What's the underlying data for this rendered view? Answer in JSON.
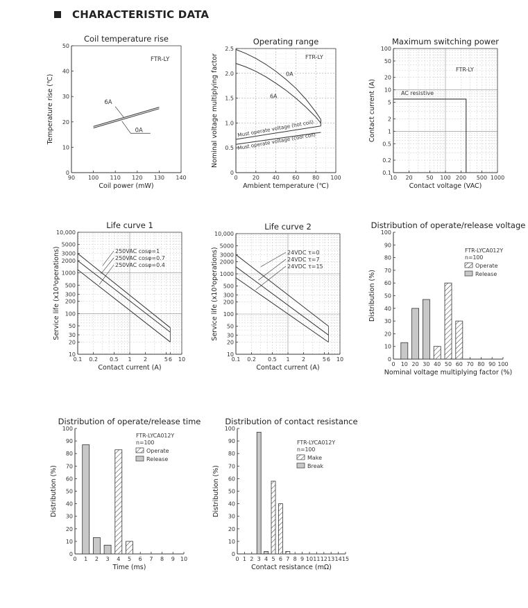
{
  "page": {
    "heading": "CHARACTERISTIC DATA"
  },
  "chart_data": [
    {
      "id": "coil",
      "type": "line",
      "title": "Coil temperature rise",
      "xlabel": "Coil power (mW)",
      "ylabel": "Temperature rise (℃)",
      "xlim": [
        90,
        140
      ],
      "ylim": [
        0,
        50
      ],
      "xticks": [
        90,
        100,
        110,
        120,
        130,
        140
      ],
      "yticks": [
        0,
        10,
        20,
        30,
        40,
        50
      ],
      "model": "FTR-LY",
      "series": [
        {
          "name": "6A",
          "x": [
            100,
            130
          ],
          "y": [
            18.2,
            25.8
          ]
        },
        {
          "name": "0A",
          "x": [
            100,
            130
          ],
          "y": [
            17.6,
            25.2
          ]
        }
      ],
      "labels": {
        "s6": "6A",
        "s0": "0A"
      }
    },
    {
      "id": "oprange",
      "type": "line",
      "title": "Operating range",
      "xlabel": "Ambient temperature (℃)",
      "ylabel": "Nominal voltage multiplying factor",
      "xlim": [
        0,
        100
      ],
      "ylim": [
        0,
        2.5
      ],
      "xticks": [
        0,
        20,
        40,
        60,
        80,
        100
      ],
      "yticks": [
        0,
        0.5,
        1.0,
        1.5,
        2.0,
        2.5
      ],
      "yticklabels": [
        "0",
        "0.5",
        "1.0",
        "1.5",
        "2.0",
        "2.5"
      ],
      "model": "FTR-LY",
      "series": [
        {
          "name": "0A",
          "x": [
            0,
            10,
            20,
            30,
            40,
            50,
            60,
            70,
            80,
            85
          ],
          "y": [
            2.48,
            2.4,
            2.3,
            2.18,
            2.04,
            1.88,
            1.7,
            1.48,
            1.22,
            1.07
          ]
        },
        {
          "name": "6A",
          "x": [
            0,
            10,
            20,
            30,
            40,
            50,
            60,
            70,
            80,
            85
          ],
          "y": [
            2.2,
            2.13,
            2.04,
            1.93,
            1.8,
            1.66,
            1.5,
            1.32,
            1.12,
            1.0
          ]
        },
        {
          "name": "Must operate voltage (hot coil)",
          "x": [
            0,
            85
          ],
          "y": [
            0.67,
            0.94
          ]
        },
        {
          "name": "Must operate voltage (cool coil)",
          "x": [
            0,
            85
          ],
          "y": [
            0.57,
            0.81
          ]
        }
      ],
      "labels": {
        "zero": "0A",
        "six": "6A",
        "hot": "Must operate voltage (hot coil)",
        "cool": "Must operate voltage (cool coil)"
      }
    },
    {
      "id": "maxpower",
      "type": "line",
      "title": "Maximum switching power",
      "xlabel": "Contact voltage (VAC)",
      "ylabel": "Contact current (A)",
      "xscale": "log",
      "yscale": "log",
      "xlim": [
        10,
        1000
      ],
      "ylim": [
        0.1,
        100
      ],
      "xticks": [
        10,
        20,
        50,
        100,
        200,
        500,
        1000
      ],
      "xticklabels": [
        "10",
        "20",
        "50",
        "100",
        "200",
        "500",
        "1000"
      ],
      "yticks": [
        0.1,
        0.2,
        0.5,
        1,
        2,
        5,
        10,
        20,
        50,
        100
      ],
      "yticklabels": [
        "0.1",
        "0.2",
        "0.5",
        "1",
        "2",
        "5",
        "10",
        "20",
        "50",
        "100"
      ],
      "model": "FTR-LY",
      "series": [
        {
          "name": "AC resistive",
          "x": [
            10,
            250,
            250
          ],
          "y": [
            6,
            6,
            0.1
          ]
        }
      ],
      "labels": {
        "ac": "AC resistive"
      }
    },
    {
      "id": "life1",
      "type": "line",
      "title": "Life curve 1",
      "xlabel": "Contact current (A)",
      "ylabel": "Service life (x10³operations)",
      "xscale": "log",
      "yscale": "log",
      "xlim": [
        0.1,
        10
      ],
      "ylim": [
        10,
        10000
      ],
      "xticks": [
        0.1,
        0.2,
        0.5,
        1,
        2,
        5,
        6,
        10
      ],
      "xticklabels": [
        "0.1",
        "0.2",
        "0.5",
        "1",
        "2",
        "5",
        "6",
        "10"
      ],
      "yticks": [
        10,
        20,
        30,
        50,
        100,
        200,
        300,
        500,
        1000,
        2000,
        3000,
        5000,
        10000
      ],
      "yticklabels": [
        "10",
        "20",
        "30",
        "50",
        "100",
        "200",
        "300",
        "500",
        "1000",
        "2000",
        "3000",
        "5000",
        "10,000"
      ],
      "series": [
        {
          "name": "250VAC cosφ=1",
          "x": [
            0.1,
            6
          ],
          "y": [
            3000,
            45
          ]
        },
        {
          "name": "250VAC cosφ=0.7",
          "x": [
            0.1,
            6
          ],
          "y": [
            2000,
            35
          ]
        },
        {
          "name": "250VAC cosφ=0.4",
          "x": [
            0.1,
            6
          ],
          "y": [
            1200,
            20
          ]
        }
      ],
      "labels": {
        "a": "250VAC cosφ=1",
        "b": "250VAC cosφ=0.7",
        "c": "250VAC cosφ=0.4"
      }
    },
    {
      "id": "life2",
      "type": "line",
      "title": "Life curve 2",
      "xlabel": "Contact current (A)",
      "ylabel": "Service life (x10³operations)",
      "xscale": "log",
      "yscale": "log",
      "xlim": [
        0.1,
        10
      ],
      "ylim": [
        10,
        10000
      ],
      "xticks": [
        0.1,
        0.2,
        0.5,
        1,
        2,
        5,
        6,
        10
      ],
      "xticklabels": [
        "0.1",
        "0.2",
        "0.5",
        "1",
        "2",
        "5",
        "6",
        "10"
      ],
      "yticks": [
        10,
        20,
        30,
        50,
        100,
        200,
        300,
        500,
        1000,
        2000,
        3000,
        5000,
        10000
      ],
      "yticklabels": [
        "10",
        "20",
        "30",
        "50",
        "100",
        "200",
        "300",
        "500",
        "1000",
        "2000",
        "3000",
        "5000",
        "10,000"
      ],
      "series": [
        {
          "name": "24VDC τ=0",
          "x": [
            0.1,
            6
          ],
          "y": [
            3000,
            50
          ]
        },
        {
          "name": "24VDC τ=7",
          "x": [
            0.1,
            6
          ],
          "y": [
            1500,
            30
          ]
        },
        {
          "name": "24VDC τ=15",
          "x": [
            0.1,
            6
          ],
          "y": [
            800,
            20
          ]
        }
      ],
      "labels": {
        "a": "24VDC τ=0",
        "b": "24VDC τ=7",
        "c": "24VDC τ=15"
      }
    },
    {
      "id": "distv",
      "type": "bar",
      "title": "Distribution of operate/release voltage",
      "xlabel": "Nominal voltage multiplying factor (%)",
      "ylabel": "Distribution (%)",
      "xlim": [
        0,
        100
      ],
      "ylim": [
        0,
        100
      ],
      "xticks": [
        0,
        10,
        20,
        30,
        40,
        50,
        60,
        70,
        80,
        90,
        100
      ],
      "yticks": [
        0,
        10,
        20,
        30,
        40,
        50,
        60,
        70,
        80,
        90,
        100
      ],
      "model": "FTR-LYCA012Y",
      "n": "n=100",
      "series": [
        {
          "name": "Operate",
          "categories": [
            40,
            50,
            60
          ],
          "values": [
            10,
            60,
            30
          ]
        },
        {
          "name": "Release",
          "categories": [
            10,
            20,
            30
          ],
          "values": [
            13,
            40,
            47
          ]
        }
      ],
      "legend": {
        "operate": "Operate",
        "release": "Release"
      }
    },
    {
      "id": "distt",
      "type": "bar",
      "title": "Distribution of operate/release time",
      "xlabel": "Time (ms)",
      "ylabel": "Distribution (%)",
      "xlim": [
        0,
        10
      ],
      "ylim": [
        0,
        100
      ],
      "xticks": [
        0,
        1,
        2,
        3,
        4,
        5,
        6,
        7,
        8,
        9,
        10
      ],
      "yticks": [
        0,
        10,
        20,
        30,
        40,
        50,
        60,
        70,
        80,
        90,
        100
      ],
      "model": "FTR-LYCA012Y",
      "n": "n=100",
      "series": [
        {
          "name": "Operate",
          "categories": [
            4,
            5
          ],
          "values": [
            83,
            10
          ]
        },
        {
          "name": "Release",
          "categories": [
            1,
            2,
            3
          ],
          "values": [
            87,
            13,
            7
          ]
        }
      ],
      "legend": {
        "operate": "Operate",
        "release": "Release"
      }
    },
    {
      "id": "distr",
      "type": "bar",
      "title": "Distribution of contact resistance",
      "xlabel": "Contact resistance (mΩ)",
      "ylabel": "Distribution (%)",
      "xlim": [
        0,
        15
      ],
      "ylim": [
        0,
        100
      ],
      "xticks": [
        0,
        1,
        2,
        3,
        4,
        5,
        6,
        7,
        8,
        9,
        10,
        11,
        12,
        13,
        14,
        15
      ],
      "yticks": [
        0,
        10,
        20,
        30,
        40,
        50,
        60,
        70,
        80,
        90,
        100
      ],
      "model": "FTR-LYCA012Y",
      "n": "n=100",
      "series": [
        {
          "name": "Make",
          "categories": [
            5,
            6,
            7
          ],
          "values": [
            58,
            40,
            2
          ]
        },
        {
          "name": "Break",
          "categories": [
            3,
            4
          ],
          "values": [
            97,
            2
          ]
        }
      ],
      "legend": {
        "make": "Make",
        "brk": "Break"
      }
    }
  ]
}
